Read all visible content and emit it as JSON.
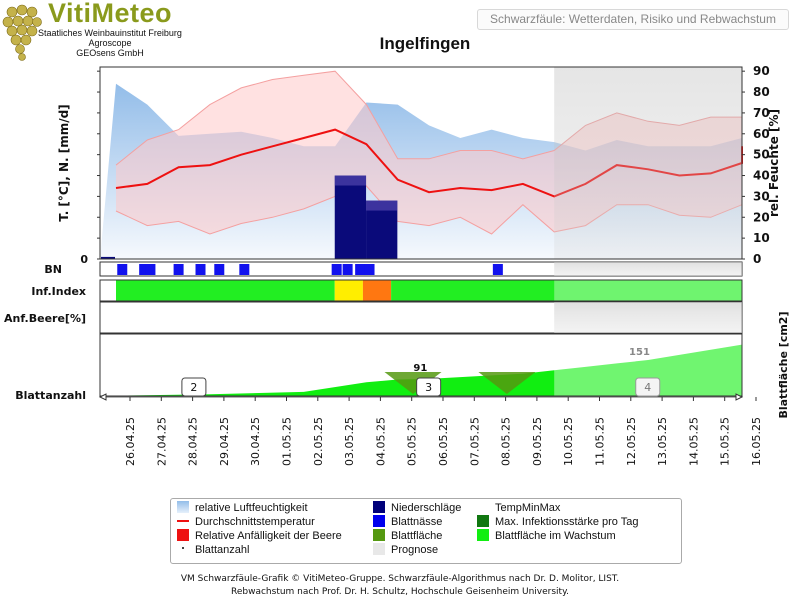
{
  "header": {
    "brand": "VitiMeteo",
    "institutions": [
      "Staatliches Weinbauinstitut Freiburg",
      "Agroscope",
      "GEOsens GmbH"
    ],
    "app_title": "Schwarzfäule: Wetterdaten, Risiko und Rebwachstum"
  },
  "station": "Ingelfingen",
  "footer": {
    "line1": "VM Schwarzfäule-Grafik © VitiMeteo-Gruppe. Schwarzfäule-Algorithmus nach Dr. D. Molitor, LIST.",
    "line2": "Rebwachstum nach Prof. Dr. H. Schultz, Hochschule Geisenheim University."
  },
  "legend": [
    {
      "label": "relative Luftfeuchtigkeit",
      "color": "#a9c9ee",
      "kind": "swatch-grad"
    },
    {
      "label": "Niederschläge",
      "color": "#00007a",
      "kind": "swatch"
    },
    {
      "label": "TempMinMax",
      "color": "#ffd6d6",
      "kind": "none"
    },
    {
      "label": "Durchschnittstemperatur",
      "color": "#ee1111",
      "kind": "line"
    },
    {
      "label": "Blattnässe",
      "color": "#0000ee",
      "kind": "swatch"
    },
    {
      "label": "Max. Infektionsstärke pro Tag",
      "color": "#117711",
      "kind": "swatch"
    },
    {
      "label": "Relative Anfälligkeit der Beere",
      "color": "#ee1111",
      "kind": "swatch"
    },
    {
      "label": "Blattfläche",
      "color": "#559911",
      "kind": "swatch"
    },
    {
      "label": "Blattfläche im Wachstum",
      "color": "#11ee11",
      "kind": "swatch"
    },
    {
      "label": "Blattanzahl",
      "color": "#444444",
      "kind": "dot"
    },
    {
      "label": "Prognose",
      "color": "#e8e8e8",
      "kind": "swatch"
    }
  ],
  "chart_data": {
    "type": "line",
    "title": "Ingelfingen",
    "dates": [
      "26.04.25",
      "27.04.25",
      "28.04.25",
      "29.04.25",
      "30.04.25",
      "01.05.25",
      "02.05.25",
      "03.05.25",
      "04.05.25",
      "05.05.25",
      "06.05.25",
      "07.05.25",
      "08.05.25",
      "09.05.25",
      "10.05.25",
      "11.05.25",
      "12.05.25",
      "13.05.25",
      "14.05.25",
      "15.05.25",
      "16.05.25"
    ],
    "x_labels": [
      "26.04.25",
      "27.04.25",
      "28.04.25",
      "29.04.25",
      "30.04.25",
      "01.05.25",
      "02.05.25",
      "03.05.25",
      "04.05.25",
      "05.05.25",
      "06.05.25",
      "07.05.25",
      "08.05.25",
      "09.05.25",
      "10.05.25",
      "11.05.25",
      "12.05.25",
      "13.05.25",
      "14.05.25",
      "15.05.25",
      "16.05.25"
    ],
    "x_domain": [
      0,
      20.6
    ],
    "y_left": {
      "label": "T. [°C], N. [mm/d]",
      "ticks": [
        0,
        10,
        20,
        30,
        40,
        50,
        60,
        70,
        80,
        90
      ]
    },
    "y_right": {
      "label": "rel. Feuchte [%]",
      "ticks": [
        0,
        10,
        20,
        30,
        40,
        50,
        60,
        70,
        80,
        90
      ]
    },
    "y_range": [
      0,
      92
    ],
    "forecast_start_index": 14,
    "series": [
      {
        "name": "relative Luftfeuchtigkeit",
        "x": [
          0,
          1,
          2,
          3,
          4,
          5,
          6,
          7,
          8,
          9,
          10,
          11,
          12,
          13,
          14,
          15,
          16,
          17,
          18,
          19,
          20,
          20.6
        ],
        "values": [
          84,
          74,
          59,
          60,
          61,
          58,
          54,
          54,
          75,
          74,
          64,
          58,
          62,
          58,
          56,
          52,
          57,
          54,
          54,
          54,
          58,
          43
        ]
      },
      {
        "name": "Durchschnittstemperatur",
        "x": [
          0,
          1,
          2,
          3,
          4,
          5,
          6,
          7,
          8,
          9,
          10,
          11,
          12,
          13,
          14,
          15,
          16,
          17,
          18,
          19,
          20,
          20.6
        ],
        "values": [
          34,
          36,
          44,
          45,
          50,
          54,
          58,
          62,
          55,
          38,
          32,
          34,
          33,
          36,
          30,
          36,
          45,
          43,
          40,
          41,
          46,
          54
        ]
      },
      {
        "name": "TempMax",
        "x": [
          0,
          1,
          2,
          3,
          4,
          5,
          6,
          7,
          8,
          9,
          10,
          11,
          12,
          13,
          14,
          15,
          16,
          17,
          18,
          19,
          20,
          20.6
        ],
        "values": [
          45,
          57,
          62,
          74,
          82,
          86,
          88,
          90,
          74,
          48,
          48,
          52,
          52,
          48,
          52,
          64,
          70,
          66,
          64,
          68,
          68,
          54
        ]
      },
      {
        "name": "TempMin",
        "x": [
          0,
          1,
          2,
          3,
          4,
          5,
          6,
          7,
          8,
          9,
          10,
          11,
          12,
          13,
          14,
          15,
          16,
          17,
          18,
          19,
          20,
          20.6
        ],
        "values": [
          23,
          16,
          18,
          12,
          17,
          20,
          24,
          30,
          35,
          18,
          16,
          20,
          12,
          26,
          13,
          16,
          26,
          26,
          21,
          20,
          26,
          20
        ]
      },
      {
        "name": "Niederschläge",
        "x": [
          0,
          7.5,
          8.5
        ],
        "values": [
          1,
          40,
          28
        ]
      }
    ],
    "blattnaesse_days": [
      0.2,
      0.9,
      1.1,
      2.0,
      2.7,
      3.3,
      4.1,
      7.05,
      7.4,
      7.8,
      8.1,
      12.2
    ],
    "inf_index": [
      {
        "from": 0,
        "to": 7.5,
        "color": "#22ee22"
      },
      {
        "from": 7.5,
        "to": 8.4,
        "color": "#ffee00"
      },
      {
        "from": 8.4,
        "to": 9.3,
        "color": "#ff7711"
      },
      {
        "from": 9.3,
        "to": 20.6,
        "color": "#22ee22"
      }
    ],
    "blattflaeche": {
      "x": [
        0,
        3,
        6,
        8,
        9,
        10,
        11,
        12,
        13,
        14,
        15,
        16,
        17,
        18,
        19,
        20,
        20.6
      ],
      "values": [
        1,
        5,
        12,
        40,
        48,
        50,
        55,
        60,
        65,
        75,
        85,
        95,
        105,
        120,
        135,
        150,
        175
      ],
      "annotation_points": [
        {
          "x": 10.3,
          "label": "91"
        },
        {
          "x": 17.3,
          "label": "151"
        }
      ]
    },
    "blattanzahl_markers": [
      {
        "x": 3.0,
        "label": "2"
      },
      {
        "x": 10.5,
        "label": "3"
      },
      {
        "x": 17.5,
        "label": "4"
      }
    ],
    "row_labels": {
      "bn": "BN",
      "inf": "Inf.Index",
      "anf": "Anf.Beere[%]",
      "blatt": "Blattanzahl",
      "right_axis": "Blattfläche [cm2]"
    }
  }
}
